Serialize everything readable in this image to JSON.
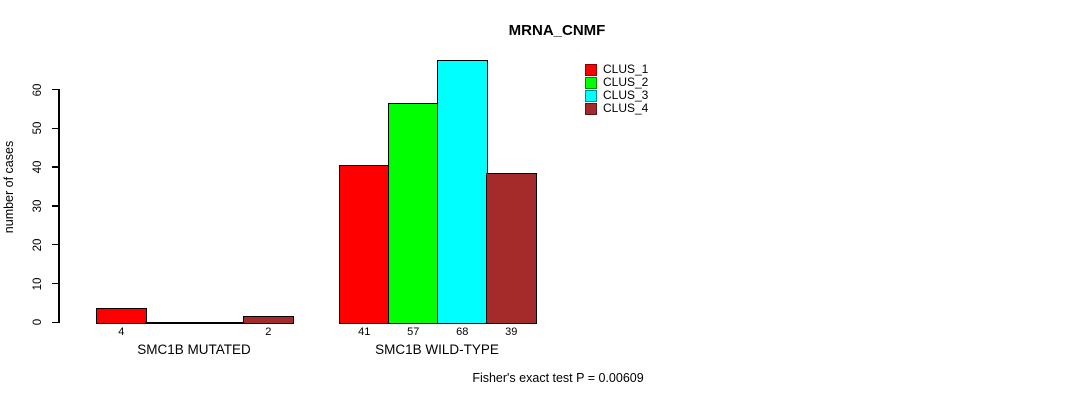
{
  "chart_data": {
    "type": "bar",
    "title": "MRNA_CNMF",
    "xlabel": "",
    "ylabel": "number of cases",
    "ylim": [
      0,
      60
    ],
    "yticks": [
      0,
      10,
      20,
      30,
      40,
      50,
      60
    ],
    "grid": false,
    "legend_position": "right-of-plot-top",
    "categories": [
      "SMC1B MUTATED",
      "SMC1B WILD-TYPE"
    ],
    "series": [
      {
        "name": "CLUS_1",
        "color": "#ff0000",
        "values": [
          4,
          41
        ]
      },
      {
        "name": "CLUS_2",
        "color": "#00ff00",
        "values": [
          0,
          57
        ]
      },
      {
        "name": "CLUS_3",
        "color": "#00ffff",
        "values": [
          0,
          68
        ]
      },
      {
        "name": "CLUS_4",
        "color": "#a52a2a",
        "values": [
          2,
          39
        ]
      }
    ],
    "bar_value_labels": [
      [
        "4",
        "",
        "",
        "2"
      ],
      [
        "41",
        "57",
        "68",
        "39"
      ]
    ],
    "annotation": "Fisher's exact test P = 0.00609"
  },
  "colors": {
    "background": "#ffffff",
    "text": "#000000",
    "bar_border": "#000000",
    "axis": "#000000"
  }
}
